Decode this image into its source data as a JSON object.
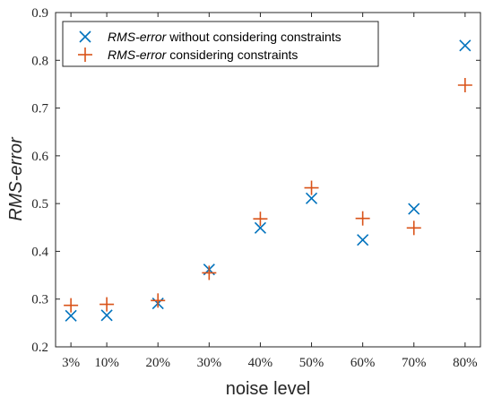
{
  "chart_data": {
    "type": "scatter",
    "xlabel": "noise level",
    "ylabel": "RMS-error",
    "categories": [
      "3%",
      "10%",
      "20%",
      "30%",
      "40%",
      "50%",
      "60%",
      "70%",
      "80%"
    ],
    "x": [
      3,
      10,
      20,
      30,
      40,
      50,
      60,
      70,
      80
    ],
    "xlim": [
      0,
      83
    ],
    "ylim": [
      0.2,
      0.9
    ],
    "yticks": [
      "0.2",
      "0.3",
      "0.4",
      "0.5",
      "0.6",
      "0.7",
      "0.8",
      "0.9"
    ],
    "grid": false,
    "legend_position": "top-left",
    "series": [
      {
        "name_italic": "RMS-error",
        "name_rest": " without considering constraints",
        "marker": "x",
        "color": "#0072BD",
        "values": [
          0.265,
          0.266,
          0.291,
          0.362,
          0.449,
          0.511,
          0.424,
          0.489,
          0.831
        ]
      },
      {
        "name_italic": "RMS-error",
        "name_rest": " considering constraints",
        "marker": "+",
        "color": "#D95319",
        "values": [
          0.287,
          0.289,
          0.297,
          0.355,
          0.468,
          0.533,
          0.469,
          0.449,
          0.748
        ]
      }
    ]
  }
}
